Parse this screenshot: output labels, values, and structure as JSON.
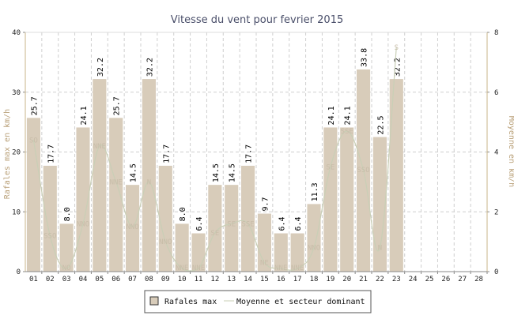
{
  "chart_data": {
    "type": "bar",
    "title": "Vitesse du vent pour fevrier 2015",
    "ylabel_left": "Rafales max en km/h",
    "ylabel_right": "Moyenne en km/h",
    "ylim_left": [
      0,
      40
    ],
    "ylim_right": [
      0,
      8
    ],
    "yticks_left": [
      "0",
      "10",
      "20",
      "30",
      "40"
    ],
    "yticks_right": [
      "0",
      "2",
      "4",
      "6",
      "8"
    ],
    "grid": true,
    "categories": [
      "01",
      "02",
      "03",
      "04",
      "05",
      "06",
      "07",
      "08",
      "09",
      "10",
      "11",
      "12",
      "13",
      "14",
      "15",
      "16",
      "17",
      "18",
      "19",
      "20",
      "21",
      "22",
      "23",
      "24",
      "25",
      "26",
      "27",
      "28"
    ],
    "series": [
      {
        "name": "Rafales max",
        "values": [
          25.7,
          17.7,
          8.0,
          24.1,
          32.2,
          25.7,
          14.5,
          32.2,
          17.7,
          8.0,
          6.4,
          14.5,
          14.5,
          17.7,
          9.7,
          6.4,
          6.4,
          11.3,
          24.1,
          24.1,
          33.8,
          22.5,
          32.2,
          null,
          null,
          null,
          null,
          null
        ],
        "labels": [
          "25.7",
          "17.7",
          "8.0",
          "24.1",
          "32.2",
          "25.7",
          "14.5",
          "32.2",
          "17.7",
          "8.0",
          "6.4",
          "14.5",
          "14.5",
          "17.7",
          "9.7",
          "6.4",
          "6.4",
          "11.3",
          "24.1",
          "24.1",
          "33.8",
          "22.5",
          "32.2",
          "",
          "",
          "",
          "",
          ""
        ],
        "color": "#d8ccba"
      },
      {
        "name": "Moyenne et secteur dominant",
        "values": [
          4.4,
          1.2,
          0.1,
          1.6,
          4.2,
          3.0,
          1.5,
          3.0,
          1.0,
          0.1,
          0.1,
          1.3,
          1.6,
          1.6,
          0.3,
          0.1,
          0.1,
          0.8,
          3.5,
          4.7,
          3.4,
          0.8,
          7.5,
          null,
          null,
          null,
          null,
          null
        ],
        "sectors": [
          "SO",
          "SSO",
          "NO",
          "NNO",
          "NNE",
          "NNE",
          "NNO",
          "N",
          "NNO",
          "NNE",
          "NNE",
          "SE",
          "SE",
          "SSE",
          "NE",
          "NNE",
          "NNE",
          "NNO",
          "SE",
          "SSE",
          "SSO",
          "N",
          "S",
          "",
          "",
          "",
          "",
          ""
        ],
        "color": "#c9cfb6"
      }
    ],
    "legend_position": "bottom"
  }
}
